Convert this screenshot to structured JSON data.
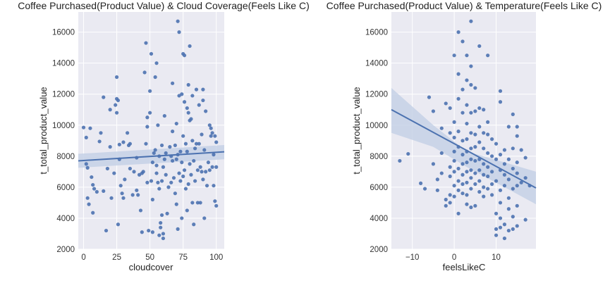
{
  "chart_data": [
    {
      "type": "scatter",
      "title": "Coffee Purchased(Product Value) & Cloud Coverage(Feels Like C)",
      "xlabel": "cloudcover",
      "ylabel": "t_total_product_value",
      "xlim": [
        -4,
        106
      ],
      "ylim": [
        2000,
        17300
      ],
      "xticks": [
        0,
        25,
        50,
        75,
        100
      ],
      "yticks": [
        2000,
        4000,
        6000,
        8000,
        10000,
        12000,
        14000,
        16000
      ],
      "grid": true,
      "regression": {
        "x": [
          -4,
          106
        ],
        "y": [
          7700,
          8280
        ]
      },
      "ci_band": {
        "x": [
          -4,
          106
        ],
        "lower": [
          7250,
          7800
        ],
        "upper": [
          8150,
          8720
        ]
      },
      "points": [
        [
          0,
          9850
        ],
        [
          2,
          9200
        ],
        [
          2,
          7500
        ],
        [
          3,
          7250
        ],
        [
          3,
          5300
        ],
        [
          4,
          4900
        ],
        [
          5,
          9800
        ],
        [
          6,
          6650
        ],
        [
          7,
          6150
        ],
        [
          7,
          4350
        ],
        [
          8,
          5900
        ],
        [
          10,
          5700
        ],
        [
          12,
          8950
        ],
        [
          13,
          9500
        ],
        [
          15,
          11800
        ],
        [
          15,
          5750
        ],
        [
          17,
          3200
        ],
        [
          18,
          7200
        ],
        [
          20,
          11000
        ],
        [
          20,
          8600
        ],
        [
          21,
          5300
        ],
        [
          23,
          6900
        ],
        [
          24,
          11300
        ],
        [
          25,
          13100
        ],
        [
          25,
          11700
        ],
        [
          25,
          10800
        ],
        [
          26,
          11600
        ],
        [
          26,
          3600
        ],
        [
          27,
          8750
        ],
        [
          27,
          7800
        ],
        [
          28,
          6100
        ],
        [
          29,
          5600
        ],
        [
          30,
          5300
        ],
        [
          30,
          8900
        ],
        [
          31,
          6500
        ],
        [
          33,
          9500
        ],
        [
          34,
          8700
        ],
        [
          35,
          8800
        ],
        [
          35,
          7200
        ],
        [
          37,
          5500
        ],
        [
          38,
          7000
        ],
        [
          40,
          7900
        ],
        [
          40,
          5800
        ],
        [
          41,
          5500
        ],
        [
          42,
          6800
        ],
        [
          43,
          4500
        ],
        [
          44,
          6900
        ],
        [
          44,
          3100
        ],
        [
          45,
          7000
        ],
        [
          46,
          13400
        ],
        [
          47,
          15300
        ],
        [
          47,
          8800
        ],
        [
          48,
          10500
        ],
        [
          48,
          9900
        ],
        [
          48,
          6300
        ],
        [
          49,
          3200
        ],
        [
          50,
          12200
        ],
        [
          50,
          10800
        ],
        [
          51,
          14600
        ],
        [
          51,
          6400
        ],
        [
          52,
          7600
        ],
        [
          52,
          5200
        ],
        [
          52,
          3100
        ],
        [
          53,
          8200
        ],
        [
          54,
          13100
        ],
        [
          54,
          8400
        ],
        [
          55,
          14000
        ],
        [
          55,
          7400
        ],
        [
          55,
          6900
        ],
        [
          56,
          10000
        ],
        [
          56,
          6300
        ],
        [
          57,
          8000
        ],
        [
          57,
          5900
        ],
        [
          57,
          2900
        ],
        [
          58,
          3700
        ],
        [
          58,
          3400
        ],
        [
          59,
          8700
        ],
        [
          59,
          6400
        ],
        [
          59,
          4200
        ],
        [
          60,
          7300
        ],
        [
          60,
          3000
        ],
        [
          60,
          2700
        ],
        [
          61,
          10600
        ],
        [
          61,
          7800
        ],
        [
          62,
          8200
        ],
        [
          62,
          6800
        ],
        [
          63,
          4300
        ],
        [
          64,
          6000
        ],
        [
          65,
          8600
        ],
        [
          66,
          8000
        ],
        [
          66,
          6300
        ],
        [
          67,
          12700
        ],
        [
          67,
          9600
        ],
        [
          67,
          7700
        ],
        [
          68,
          6600
        ],
        [
          69,
          8700
        ],
        [
          69,
          5600
        ],
        [
          70,
          10100
        ],
        [
          70,
          7800
        ],
        [
          70,
          4900
        ],
        [
          71,
          16700
        ],
        [
          71,
          8100
        ],
        [
          71,
          3300
        ],
        [
          72,
          16000
        ],
        [
          72,
          11900
        ],
        [
          72,
          6900
        ],
        [
          73,
          8300
        ],
        [
          73,
          6400
        ],
        [
          74,
          12000
        ],
        [
          74,
          7600
        ],
        [
          74,
          4000
        ],
        [
          75,
          14600
        ],
        [
          75,
          9300
        ],
        [
          75,
          6700
        ],
        [
          76,
          14500
        ],
        [
          76,
          11500
        ],
        [
          76,
          7100
        ],
        [
          77,
          8800
        ],
        [
          77,
          5900
        ],
        [
          78,
          11100
        ],
        [
          78,
          8300
        ],
        [
          78,
          4500
        ],
        [
          79,
          12600
        ],
        [
          79,
          10800
        ],
        [
          79,
          6200
        ],
        [
          80,
          15100
        ],
        [
          80,
          10300
        ],
        [
          80,
          7500
        ],
        [
          81,
          10400
        ],
        [
          81,
          6800
        ],
        [
          82,
          11900
        ],
        [
          82,
          9000
        ],
        [
          82,
          5000
        ],
        [
          83,
          7700
        ],
        [
          83,
          3600
        ],
        [
          84,
          8500
        ],
        [
          84,
          6400
        ],
        [
          85,
          12300
        ],
        [
          85,
          8800
        ],
        [
          86,
          7100
        ],
        [
          86,
          5000
        ],
        [
          87,
          11300
        ],
        [
          87,
          8800
        ],
        [
          88,
          7300
        ],
        [
          88,
          5000
        ],
        [
          89,
          9400
        ],
        [
          89,
          7000
        ],
        [
          90,
          12300
        ],
        [
          90,
          11600
        ],
        [
          90,
          6500
        ],
        [
          91,
          8400
        ],
        [
          91,
          4000
        ],
        [
          92,
          10900
        ],
        [
          92,
          7000
        ],
        [
          93,
          6100
        ],
        [
          94,
          7600
        ],
        [
          95,
          10000
        ],
        [
          95,
          7100
        ],
        [
          96,
          9800
        ],
        [
          96,
          9300
        ],
        [
          97,
          9500
        ],
        [
          97,
          7300
        ],
        [
          98,
          8100
        ],
        [
          98,
          6100
        ],
        [
          99,
          9300
        ],
        [
          99,
          5100
        ],
        [
          100,
          8900
        ],
        [
          100,
          7300
        ],
        [
          100,
          4800
        ]
      ]
    },
    {
      "type": "scatter",
      "title": "Coffee Purchased(Product Value) & Temperature(Feels Like C)",
      "xlabel": "feelsLikeC",
      "ylabel": "t_total_product_value",
      "xlim": [
        -15,
        19.5
      ],
      "ylim": [
        2000,
        17300
      ],
      "xticks": [
        -10,
        0,
        10
      ],
      "yticks": [
        2000,
        4000,
        6000,
        8000,
        10000,
        12000,
        14000,
        16000
      ],
      "grid": true,
      "regression": {
        "x": [
          -15,
          19.5
        ],
        "y": [
          11000,
          5950
        ]
      },
      "ci_band": {
        "x": [
          -15,
          -5,
          3,
          12,
          19.5
        ],
        "lower": [
          9500,
          8600,
          7300,
          6000,
          4900
        ],
        "upper": [
          12400,
          10000,
          8300,
          7600,
          7000
        ]
      },
      "points": [
        [
          -13,
          7700
        ],
        [
          -11,
          8150
        ],
        [
          -8,
          6250
        ],
        [
          -7,
          5900
        ],
        [
          -6,
          11800
        ],
        [
          -5,
          10900
        ],
        [
          -5,
          7500
        ],
        [
          -4,
          6500
        ],
        [
          -4,
          5800
        ],
        [
          -3,
          9800
        ],
        [
          -3,
          8200
        ],
        [
          -3,
          6900
        ],
        [
          -2,
          5200
        ],
        [
          -2,
          4800
        ],
        [
          -2,
          11400
        ],
        [
          -1,
          11100
        ],
        [
          -1,
          9500
        ],
        [
          -1,
          7300
        ],
        [
          -1,
          6700
        ],
        [
          -1,
          5500
        ],
        [
          -1,
          5000
        ],
        [
          0,
          14500
        ],
        [
          0,
          10200
        ],
        [
          0,
          9200
        ],
        [
          0,
          8300
        ],
        [
          0,
          7700
        ],
        [
          0,
          7000
        ],
        [
          0,
          6100
        ],
        [
          0,
          5400
        ],
        [
          1,
          16000
        ],
        [
          1,
          13300
        ],
        [
          1,
          11700
        ],
        [
          1,
          9600
        ],
        [
          1,
          8600
        ],
        [
          1,
          7200
        ],
        [
          1,
          6400
        ],
        [
          1,
          5800
        ],
        [
          1,
          4300
        ],
        [
          2,
          15400
        ],
        [
          2,
          12300
        ],
        [
          2,
          10800
        ],
        [
          2,
          9000
        ],
        [
          2,
          8100
        ],
        [
          2,
          7500
        ],
        [
          2,
          6800
        ],
        [
          2,
          6200
        ],
        [
          2,
          5600
        ],
        [
          3,
          14500
        ],
        [
          3,
          12900
        ],
        [
          3,
          11300
        ],
        [
          3,
          10100
        ],
        [
          3,
          9100
        ],
        [
          3,
          8300
        ],
        [
          3,
          7600
        ],
        [
          3,
          7000
        ],
        [
          3,
          6300
        ],
        [
          3,
          5500
        ],
        [
          3,
          4900
        ],
        [
          4,
          16700
        ],
        [
          4,
          13800
        ],
        [
          4,
          12600
        ],
        [
          4,
          10800
        ],
        [
          4,
          9500
        ],
        [
          4,
          8500
        ],
        [
          4,
          7800
        ],
        [
          4,
          7100
        ],
        [
          4,
          6600
        ],
        [
          4,
          5900
        ],
        [
          4,
          4700
        ],
        [
          5,
          12400
        ],
        [
          5,
          10900
        ],
        [
          5,
          9400
        ],
        [
          5,
          8600
        ],
        [
          5,
          7700
        ],
        [
          5,
          6900
        ],
        [
          5,
          6200
        ],
        [
          5,
          4800
        ],
        [
          6,
          15100
        ],
        [
          6,
          11100
        ],
        [
          6,
          9900
        ],
        [
          6,
          8900
        ],
        [
          6,
          7800
        ],
        [
          6,
          7100
        ],
        [
          6,
          6400
        ],
        [
          6,
          5700
        ],
        [
          7,
          11000
        ],
        [
          7,
          9500
        ],
        [
          7,
          8500
        ],
        [
          7,
          7500
        ],
        [
          7,
          6800
        ],
        [
          7,
          6000
        ],
        [
          7,
          5400
        ],
        [
          8,
          14500
        ],
        [
          8,
          10200
        ],
        [
          8,
          9400
        ],
        [
          8,
          8200
        ],
        [
          8,
          7300
        ],
        [
          8,
          6700
        ],
        [
          8,
          5900
        ],
        [
          9,
          9100
        ],
        [
          9,
          8000
        ],
        [
          9,
          7000
        ],
        [
          9,
          6200
        ],
        [
          9,
          5500
        ],
        [
          10,
          8800
        ],
        [
          10,
          7800
        ],
        [
          10,
          6400
        ],
        [
          10,
          4300
        ],
        [
          10,
          3300
        ],
        [
          10,
          2900
        ],
        [
          11,
          12200
        ],
        [
          11,
          11500
        ],
        [
          11,
          8100
        ],
        [
          11,
          7100
        ],
        [
          11,
          5800
        ],
        [
          11,
          5000
        ],
        [
          11,
          4000
        ],
        [
          11,
          3400
        ],
        [
          12,
          8400
        ],
        [
          12,
          7500
        ],
        [
          12,
          6800
        ],
        [
          12,
          6100
        ],
        [
          12,
          3600
        ],
        [
          12,
          2700
        ],
        [
          13,
          9900
        ],
        [
          13,
          7800
        ],
        [
          13,
          6500
        ],
        [
          13,
          5300
        ],
        [
          13,
          4600
        ],
        [
          13,
          3200
        ],
        [
          14,
          10700
        ],
        [
          14,
          8500
        ],
        [
          14,
          7200
        ],
        [
          14,
          5900
        ],
        [
          14,
          4100
        ],
        [
          14,
          3300
        ],
        [
          15,
          9900
        ],
        [
          15,
          9300
        ],
        [
          15,
          7600
        ],
        [
          15,
          6900
        ],
        [
          15,
          6100
        ],
        [
          15,
          4800
        ],
        [
          15,
          3500
        ],
        [
          16,
          8400
        ],
        [
          16,
          6300
        ],
        [
          17,
          7900
        ],
        [
          17,
          6600
        ],
        [
          17,
          3900
        ],
        [
          18,
          6100
        ]
      ]
    }
  ]
}
